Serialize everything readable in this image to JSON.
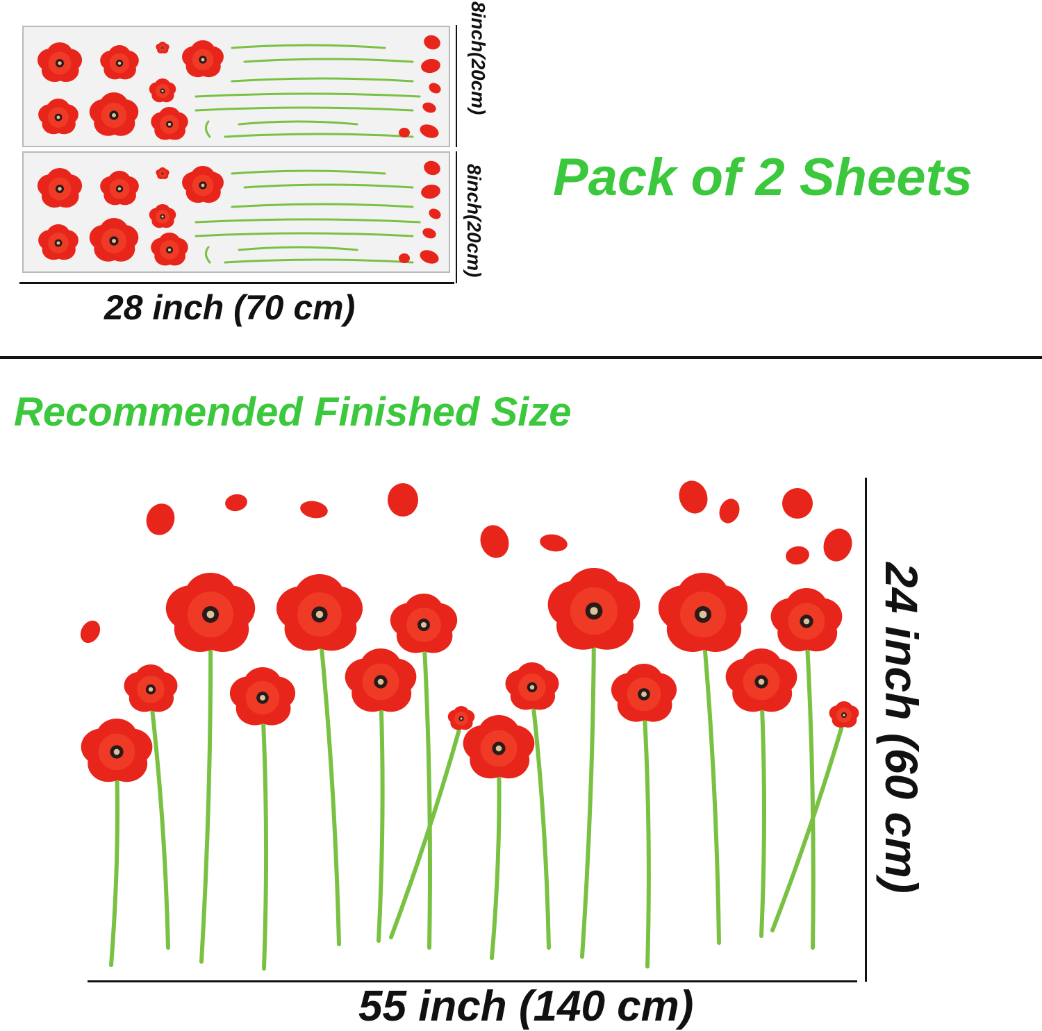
{
  "colors": {
    "accent_green": "#3cc83c",
    "poppy_red": "#e8251a",
    "stem_green": "#79c142",
    "text_dark": "#111111"
  },
  "top_section": {
    "sheet_height_label_1": "8inch(20cm)",
    "sheet_height_label_2": "8inch(20cm)",
    "sheet_width_label": "28 inch (70 cm)",
    "pack_title": "Pack of 2 Sheets"
  },
  "bottom_section": {
    "heading": "Recommended Finished Size",
    "height_label": "24 inch (60 cm)",
    "width_label": "55 inch (140 cm)"
  },
  "icons": {
    "flower": "poppy-icon",
    "petal": "petal-icon",
    "stem": "stem-icon"
  }
}
